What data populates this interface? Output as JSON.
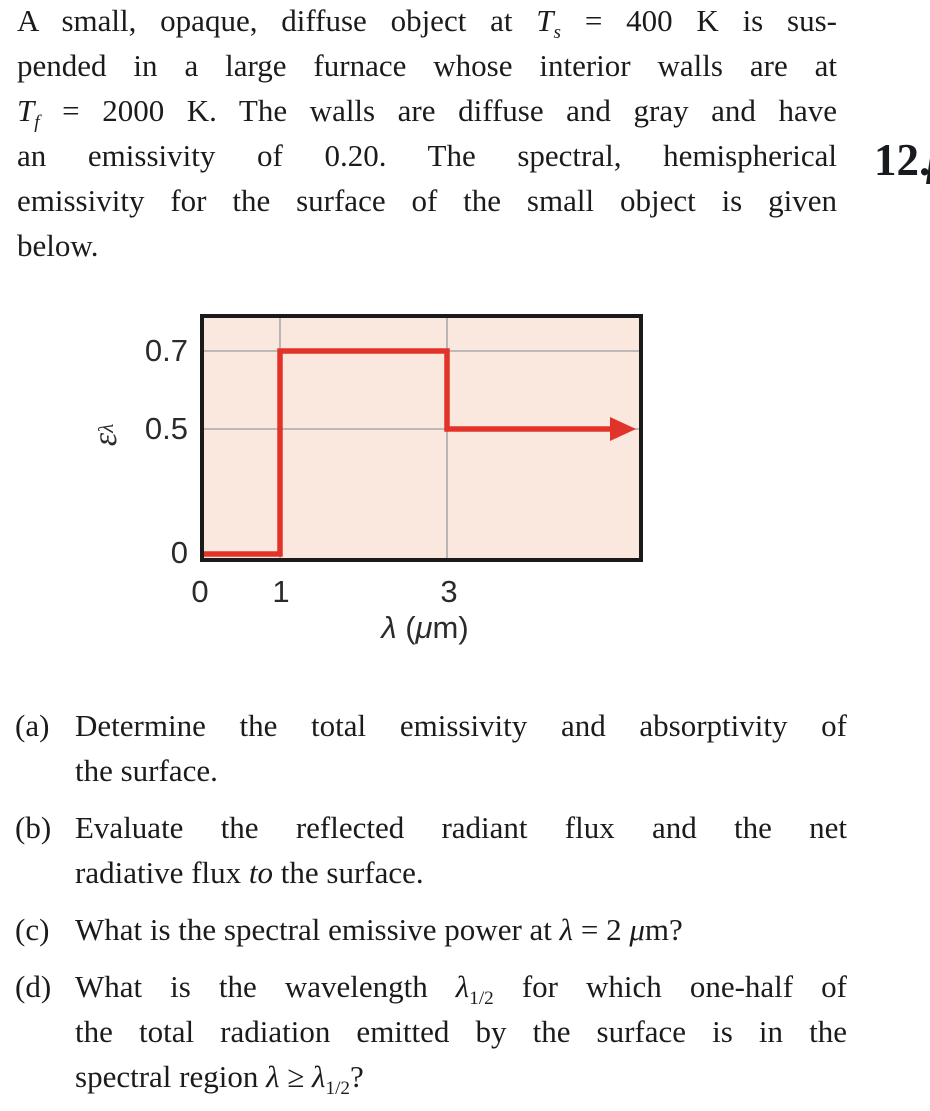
{
  "problem_number_fragment": "12.",
  "intro": {
    "lines": [
      {
        "pre": "A small, opaque, diffuse object at ",
        "var": "T",
        "sub": "s",
        "post": " = 400 K is sus-"
      },
      {
        "text": "pended in a large furnace whose interior walls are at"
      },
      {
        "var": "T",
        "sub": "f",
        "post": " = 2000 K. The walls are diffuse and gray and have"
      },
      {
        "text": "an emissivity of 0.20. The spectral, hemispherical"
      },
      {
        "text": "emissivity for the surface of the small object is given"
      },
      {
        "text": "below."
      }
    ]
  },
  "chart": {
    "ylabel_symbol": "ε",
    "ylabel_sub": "λ",
    "xlabel_g1": "λ",
    "xlabel_t1": " (",
    "xlabel_g2": "μ",
    "xlabel_t2": "m)",
    "y_ticks": [
      "0.7",
      "0.5",
      "0"
    ],
    "x_ticks": [
      "0",
      "1",
      "3"
    ]
  },
  "chart_data": {
    "type": "line",
    "subtype": "step-function",
    "title": "",
    "xlabel": "λ (μm)",
    "ylabel": "ε_λ (spectral hemispherical emissivity)",
    "x_ticks": [
      0,
      1,
      3
    ],
    "y_ticks": [
      0,
      0.5,
      0.7
    ],
    "ylim": [
      0,
      0.8
    ],
    "xlim_note": "x axis continues past 3 μm; curve ends in a right-pointing arrow (extends to infinity)",
    "grid": true,
    "legend": false,
    "series": [
      {
        "name": "spectral hemispherical emissivity of the small object",
        "step_segments": [
          {
            "x_start": 0,
            "x_end": 1,
            "value": 0,
            "note": "drawn just above zero axis"
          },
          {
            "x_start": 1,
            "x_end": 3,
            "value": 0.7
          },
          {
            "x_start": 3,
            "x_end": null,
            "value": 0.5,
            "arrow": true
          }
        ]
      }
    ],
    "colors": {
      "line": "#e2332a",
      "plot_background": "#fae7dd",
      "grid": "#a9a9a9",
      "frame": "#1a1a1a"
    }
  },
  "parts": [
    {
      "label": "(a)",
      "lines": [
        {
          "text": "Determine the total emissivity and absorptivity of"
        },
        {
          "text": "the surface."
        }
      ]
    },
    {
      "label": "(b)",
      "lines": [
        {
          "text": "Evaluate the reflected radiant flux and the net"
        },
        {
          "t1": "radiative flux ",
          "i1": "to",
          "t2": " the surface."
        }
      ]
    },
    {
      "label": "(c)",
      "lines": [
        {
          "t1": "What is the spectral emissive power at ",
          "sym1": "λ",
          "t2": " = 2 ",
          "sym2": "μ",
          "t3": "m?"
        }
      ]
    },
    {
      "label": "(d)",
      "lines": [
        {
          "t1": "What is the wavelength ",
          "sym1": "λ",
          "sub1": "1/2",
          "t2": " for which one-half of"
        },
        {
          "text": "the total radiation emitted by the surface is in the"
        },
        {
          "t1": "spectral region ",
          "sym1": "λ",
          "t2": " ≥ ",
          "sym2": "λ",
          "sub2": "1/2",
          "t3": "?"
        }
      ]
    }
  ]
}
